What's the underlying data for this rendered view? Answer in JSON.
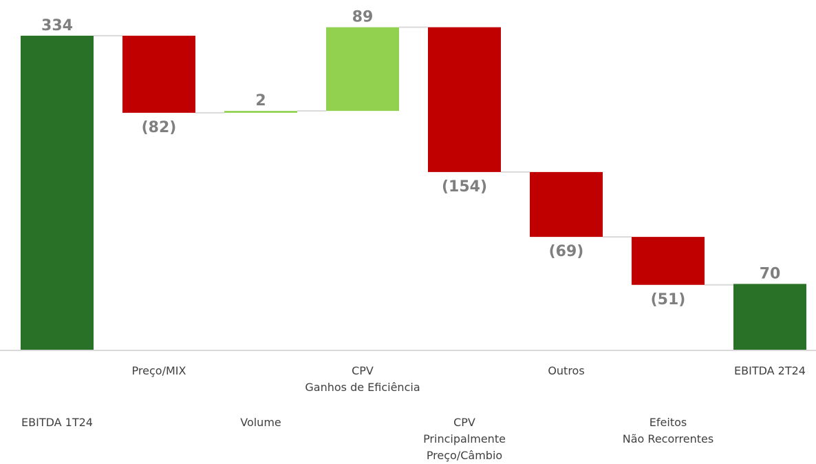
{
  "chart_data": {
    "type": "waterfall",
    "categories": [
      "EBITDA 1T24",
      "Preço/MIX",
      "Volume",
      "CPV\nGanhos de Eficiência",
      "CPV\nPrincipalmente\nPreço/Câmbio",
      "Outros",
      "Efeitos\nNão Recorrentes",
      "EBITDA 2T24"
    ],
    "values": [
      334,
      -82,
      2,
      89,
      -154,
      -69,
      -51,
      70
    ],
    "value_labels": [
      "334",
      "(82)",
      "2",
      "89",
      "(154)",
      "(69)",
      "(51)",
      "70"
    ],
    "measure": [
      "absolute",
      "relative",
      "relative",
      "relative",
      "relative",
      "relative",
      "relative",
      "absolute"
    ],
    "colors": {
      "total": "#2a7128",
      "increase": "#92d050",
      "decrease": "#c00000"
    },
    "ylim": [
      0,
      350
    ]
  }
}
